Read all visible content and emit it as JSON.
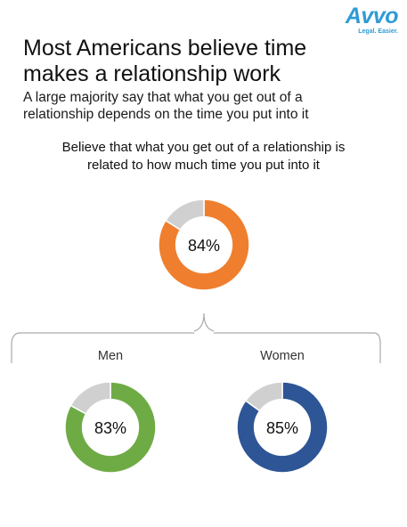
{
  "logo": {
    "word": "Avvo",
    "tagline": "Legal. Easier."
  },
  "title_lines": [
    "Most Americans believe time",
    "makes a relationship work"
  ],
  "subtitle_lines": [
    "A large majority say that what you get out of a",
    "relationship depends on the time you put into it"
  ],
  "question_lines": [
    "Believe that what you get out of a relationship is",
    "related to how much time you put into it"
  ],
  "colors": {
    "remainder": "#d0d0d0",
    "bracket": "#aaaaaa",
    "brand": "#2e9bd6"
  },
  "chart_data": [
    {
      "type": "pie",
      "label": "",
      "value": 84,
      "value_label": "84%",
      "remainder": 16,
      "color": "#ef7f2e"
    },
    {
      "type": "pie",
      "label": "Men",
      "value": 83,
      "value_label": "83%",
      "remainder": 17,
      "color": "#6fab45"
    },
    {
      "type": "pie",
      "label": "Women",
      "value": 85,
      "value_label": "85%",
      "remainder": 15,
      "color": "#2e5596"
    }
  ]
}
